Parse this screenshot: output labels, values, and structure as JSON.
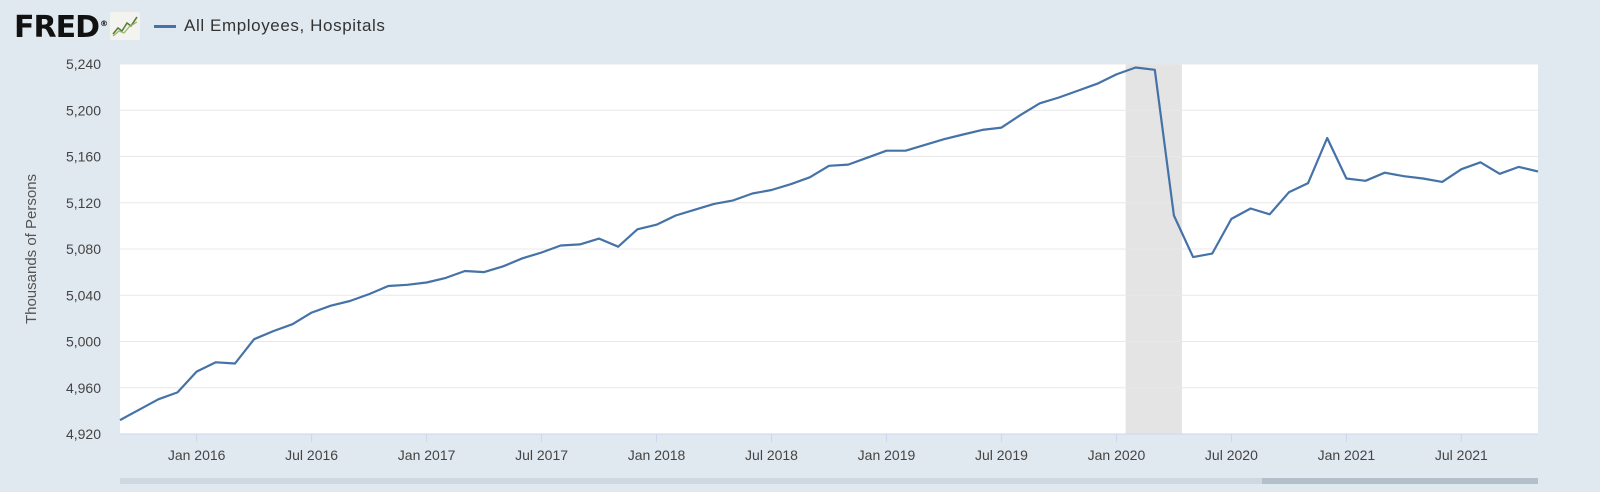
{
  "header": {
    "logo_text": "FRED",
    "logo_reg": "®",
    "logo_icon": "fred-chart-logo-icon",
    "series_label": "All Employees, Hospitals"
  },
  "colors": {
    "line": "#4572a7",
    "recession": "#e4e4e4",
    "grid": "#e8e8e8",
    "background": "#e1e9f0",
    "plot_background": "#ffffff"
  },
  "chart_data": {
    "type": "line",
    "ylabel": "Thousands of Persons",
    "ylim": [
      4920,
      5240
    ],
    "yticks": [
      "5,240",
      "5,200",
      "5,160",
      "5,120",
      "5,080",
      "5,040",
      "5,000",
      "4,960",
      "4,920"
    ],
    "ytick_values": [
      5240,
      5200,
      5160,
      5120,
      5080,
      5040,
      5000,
      4960,
      4920
    ],
    "xticks": [
      "Jan 2016",
      "Jul 2016",
      "Jan 2017",
      "Jul 2017",
      "Jan 2018",
      "Jul 2018",
      "Jan 2019",
      "Jul 2019",
      "Jan 2020",
      "Jul 2020",
      "Jan 2021",
      "Jul 2021"
    ],
    "xtick_dates": [
      "2016-01",
      "2016-07",
      "2017-01",
      "2017-07",
      "2018-01",
      "2018-07",
      "2019-01",
      "2019-07",
      "2020-01",
      "2020-07",
      "2021-01",
      "2021-07"
    ],
    "x_range": [
      "2015-09",
      "2021-11"
    ],
    "grid": true,
    "recession": [
      "2020-02",
      "2020-04"
    ],
    "series": [
      {
        "name": "All Employees, Hospitals",
        "x": [
          "2015-09",
          "2015-10",
          "2015-11",
          "2015-12",
          "2016-01",
          "2016-02",
          "2016-03",
          "2016-04",
          "2016-05",
          "2016-06",
          "2016-07",
          "2016-08",
          "2016-09",
          "2016-10",
          "2016-11",
          "2016-12",
          "2017-01",
          "2017-02",
          "2017-03",
          "2017-04",
          "2017-05",
          "2017-06",
          "2017-07",
          "2017-08",
          "2017-09",
          "2017-10",
          "2017-11",
          "2017-12",
          "2018-01",
          "2018-02",
          "2018-03",
          "2018-04",
          "2018-05",
          "2018-06",
          "2018-07",
          "2018-08",
          "2018-09",
          "2018-10",
          "2018-11",
          "2018-12",
          "2019-01",
          "2019-02",
          "2019-03",
          "2019-04",
          "2019-05",
          "2019-06",
          "2019-07",
          "2019-08",
          "2019-09",
          "2019-10",
          "2019-11",
          "2019-12",
          "2020-01",
          "2020-02",
          "2020-03",
          "2020-04",
          "2020-05",
          "2020-06",
          "2020-07",
          "2020-08",
          "2020-09",
          "2020-10",
          "2020-11",
          "2020-12",
          "2021-01",
          "2021-02",
          "2021-03",
          "2021-04",
          "2021-05",
          "2021-06",
          "2021-07",
          "2021-08",
          "2021-09",
          "2021-10",
          "2021-11"
        ],
        "values": [
          4932,
          4941,
          4950,
          4956,
          4974,
          4982,
          4981,
          5002,
          5009,
          5015,
          5025,
          5031,
          5035,
          5041,
          5048,
          5049,
          5051,
          5055,
          5061,
          5060,
          5065,
          5072,
          5077,
          5083,
          5084,
          5089,
          5082,
          5097,
          5101,
          5109,
          5114,
          5119,
          5122,
          5128,
          5131,
          5136,
          5142,
          5152,
          5153,
          5159,
          5165,
          5165,
          5170,
          5175,
          5179,
          5183,
          5185,
          5196,
          5206,
          5211,
          5217,
          5223,
          5231,
          5237,
          5235,
          5109,
          5073,
          5076,
          5106,
          5115,
          5110,
          5129,
          5137,
          5176,
          5141,
          5139,
          5146,
          5143,
          5141,
          5138,
          5149,
          5155,
          5145,
          5151,
          5147
        ]
      }
    ]
  }
}
